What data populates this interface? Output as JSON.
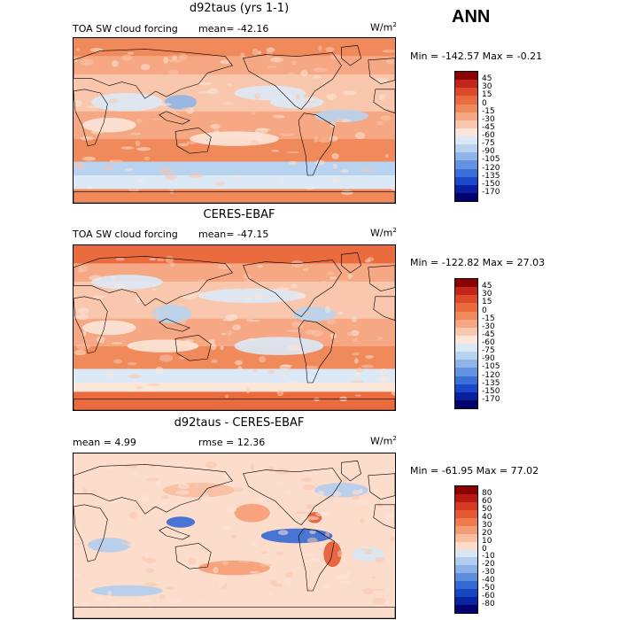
{
  "header": {
    "season": "ANN"
  },
  "panels": [
    {
      "title": "d92taus (yrs 1-1)",
      "field_label": "TOA SW cloud forcing",
      "stat_text": "mean=  -42.16",
      "units": "W/m",
      "units_sup": "2",
      "minmax": "Min = -142.57 Max =   -0.21",
      "levels": [
        "45",
        "30",
        "15",
        "0",
        "-15",
        "-30",
        "-45",
        "-60",
        "-75",
        "-90",
        "-105",
        "-120",
        "-135",
        "-150",
        "-170"
      ]
    },
    {
      "title": "CERES-EBAF",
      "field_label": "TOA SW cloud forcing",
      "stat_text": "mean=  -47.15",
      "units": "W/m",
      "units_sup": "2",
      "minmax": "Min = -122.82 Max =  27.03",
      "levels": [
        "45",
        "30",
        "15",
        "0",
        "-15",
        "-30",
        "-45",
        "-60",
        "-75",
        "-90",
        "-105",
        "-120",
        "-135",
        "-150",
        "-170"
      ]
    },
    {
      "title": "d92taus - CERES-EBAF",
      "field_label": "mean =    4.99",
      "stat_text": "rmse =   12.36",
      "units": "W/m",
      "units_sup": "2",
      "minmax": "Min = -61.95 Max =  77.02",
      "levels": [
        "80",
        "60",
        "50",
        "40",
        "30",
        "20",
        "10",
        "0",
        "-10",
        "-20",
        "-30",
        "-40",
        "-50",
        "-60",
        "-80"
      ]
    }
  ],
  "colors": {
    "abs_scale": [
      "#8b0000",
      "#c2261b",
      "#dd4a2a",
      "#ea6b3d",
      "#f08a5b",
      "#f5a883",
      "#f9c7ad",
      "#fce6d9",
      "#dbe9f6",
      "#b7d3ef",
      "#8fb5e8",
      "#6393e0",
      "#3a6fd8",
      "#1a48c8",
      "#0a1f9e",
      "#00006e"
    ],
    "diff_scale": [
      "#8b0000",
      "#b51a12",
      "#d23a22",
      "#e55a33",
      "#f07b4f",
      "#f59c76",
      "#f9bda0",
      "#fcdccb",
      "#d9e8f6",
      "#b3cdef",
      "#8cb0e7",
      "#5f8ddd",
      "#3668d4",
      "#1746c4",
      "#0a239f",
      "#00006e"
    ]
  },
  "chart_data": [
    {
      "type": "heatmap",
      "title": "d92taus (yrs 1-1)",
      "variable": "TOA SW cloud forcing",
      "units": "W/m2",
      "mean": -42.16,
      "min": -142.57,
      "max": -0.21,
      "contour_levels": [
        45,
        30,
        15,
        0,
        -15,
        -30,
        -45,
        -60,
        -75,
        -90,
        -105,
        -120,
        -135,
        -150,
        -170
      ]
    },
    {
      "type": "heatmap",
      "title": "CERES-EBAF",
      "variable": "TOA SW cloud forcing",
      "units": "W/m2",
      "mean": -47.15,
      "min": -122.82,
      "max": 27.03,
      "contour_levels": [
        45,
        30,
        15,
        0,
        -15,
        -30,
        -45,
        -60,
        -75,
        -90,
        -105,
        -120,
        -135,
        -150,
        -170
      ]
    },
    {
      "type": "heatmap",
      "title": "d92taus - CERES-EBAF",
      "units": "W/m2",
      "mean": 4.99,
      "rmse": 12.36,
      "min": -61.95,
      "max": 77.02,
      "contour_levels": [
        80,
        60,
        50,
        40,
        30,
        20,
        10,
        0,
        -10,
        -20,
        -30,
        -40,
        -50,
        -60,
        -80
      ]
    }
  ]
}
